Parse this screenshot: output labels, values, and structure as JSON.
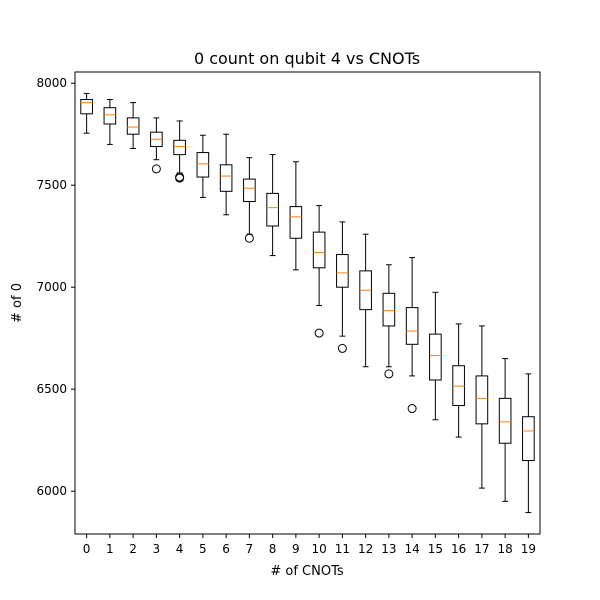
{
  "chart_data": {
    "type": "boxplot",
    "title": "0 count on qubit 4 vs CNOTs",
    "xlabel": "# of CNOTs",
    "ylabel": "# of 0",
    "ylim": [
      5790,
      8055
    ],
    "yticks": [
      6000,
      6500,
      7000,
      7500,
      8000
    ],
    "categories": [
      "0",
      "1",
      "2",
      "3",
      "4",
      "5",
      "6",
      "7",
      "8",
      "9",
      "10",
      "11",
      "12",
      "13",
      "14",
      "15",
      "16",
      "17",
      "18",
      "19"
    ],
    "grid": false,
    "box_color": "#000000",
    "median_color": "#ff7f0e",
    "boxes": [
      {
        "x": "0",
        "whislo": 7755,
        "q1": 7850,
        "med": 7905,
        "q3": 7920,
        "whishi": 7950,
        "fliers": []
      },
      {
        "x": "1",
        "whislo": 7700,
        "q1": 7800,
        "med": 7845,
        "q3": 7880,
        "whishi": 7920,
        "fliers": []
      },
      {
        "x": "2",
        "whislo": 7680,
        "q1": 7750,
        "med": 7785,
        "q3": 7830,
        "whishi": 7905,
        "fliers": []
      },
      {
        "x": "3",
        "whislo": 7625,
        "q1": 7690,
        "med": 7725,
        "q3": 7760,
        "whishi": 7830,
        "fliers": [
          7580
        ]
      },
      {
        "x": "4",
        "whislo": 7560,
        "q1": 7650,
        "med": 7690,
        "q3": 7720,
        "whishi": 7815,
        "fliers": [
          7535,
          7540
        ]
      },
      {
        "x": "5",
        "whislo": 7440,
        "q1": 7540,
        "med": 7605,
        "q3": 7660,
        "whishi": 7745,
        "fliers": []
      },
      {
        "x": "6",
        "whislo": 7355,
        "q1": 7470,
        "med": 7545,
        "q3": 7600,
        "whishi": 7750,
        "fliers": []
      },
      {
        "x": "7",
        "whislo": 7260,
        "q1": 7420,
        "med": 7485,
        "q3": 7530,
        "whishi": 7635,
        "fliers": [
          7240
        ]
      },
      {
        "x": "8",
        "whislo": 7155,
        "q1": 7300,
        "med": 7390,
        "q3": 7460,
        "whishi": 7650,
        "fliers": []
      },
      {
        "x": "9",
        "whislo": 7085,
        "q1": 7240,
        "med": 7345,
        "q3": 7395,
        "whishi": 7615,
        "fliers": []
      },
      {
        "x": "10",
        "whislo": 6910,
        "q1": 7095,
        "med": 7170,
        "q3": 7270,
        "whishi": 7400,
        "fliers": [
          6775
        ]
      },
      {
        "x": "11",
        "whislo": 6760,
        "q1": 7000,
        "med": 7070,
        "q3": 7160,
        "whishi": 7320,
        "fliers": [
          6700
        ]
      },
      {
        "x": "12",
        "whislo": 6610,
        "q1": 6890,
        "med": 6985,
        "q3": 7080,
        "whishi": 7260,
        "fliers": []
      },
      {
        "x": "13",
        "whislo": 6610,
        "q1": 6810,
        "med": 6885,
        "q3": 6970,
        "whishi": 7110,
        "fliers": [
          6575
        ]
      },
      {
        "x": "14",
        "whislo": 6565,
        "q1": 6720,
        "med": 6785,
        "q3": 6900,
        "whishi": 7145,
        "fliers": [
          6405
        ]
      },
      {
        "x": "15",
        "whislo": 6350,
        "q1": 6545,
        "med": 6665,
        "q3": 6770,
        "whishi": 6975,
        "fliers": []
      },
      {
        "x": "16",
        "whislo": 6265,
        "q1": 6420,
        "med": 6515,
        "q3": 6615,
        "whishi": 6820,
        "fliers": []
      },
      {
        "x": "17",
        "whislo": 6015,
        "q1": 6330,
        "med": 6455,
        "q3": 6565,
        "whishi": 6810,
        "fliers": []
      },
      {
        "x": "18",
        "whislo": 5950,
        "q1": 6235,
        "med": 6340,
        "q3": 6455,
        "whishi": 6650,
        "fliers": []
      },
      {
        "x": "19",
        "whislo": 5895,
        "q1": 6150,
        "med": 6295,
        "q3": 6365,
        "whishi": 6575,
        "fliers": []
      }
    ]
  }
}
